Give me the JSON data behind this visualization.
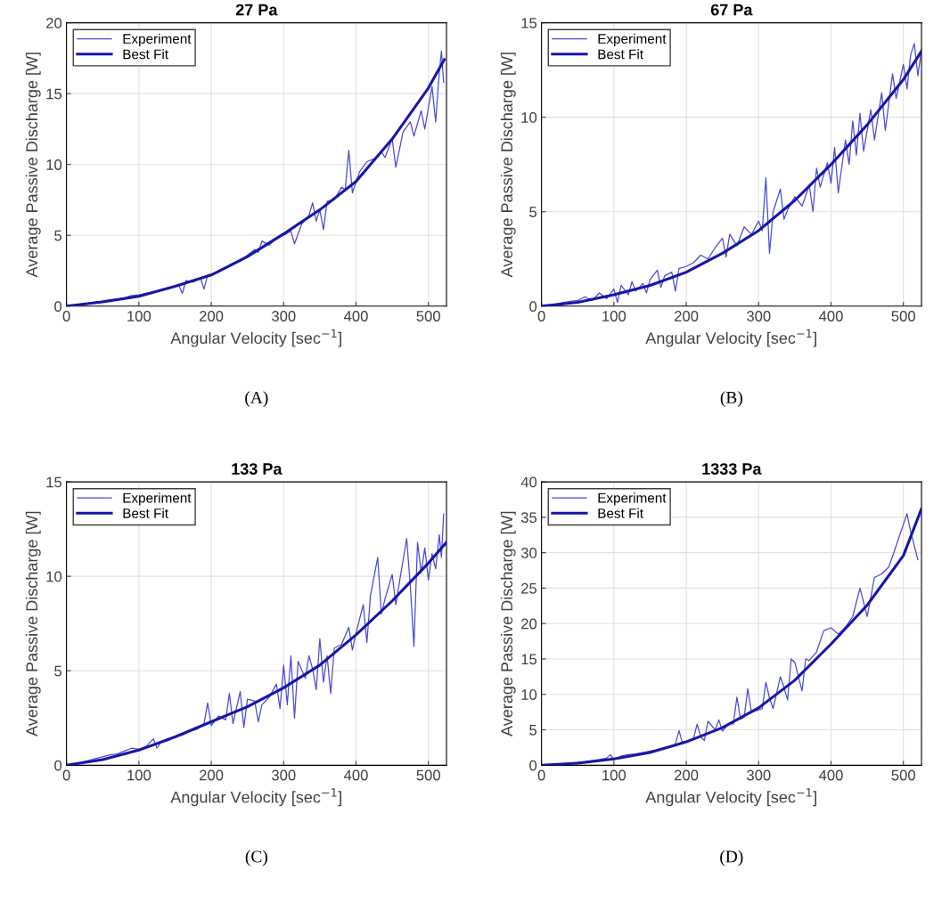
{
  "chart_data": [
    {
      "type": "line",
      "title": "27 Pa",
      "xlabel": "Angular Velocity [sec$^{−1}$]",
      "ylabel": "Average Passive Discharge [W]",
      "xlim": [
        0,
        525
      ],
      "ylim": [
        0,
        20
      ],
      "xticks": [
        0,
        100,
        200,
        300,
        400,
        500
      ],
      "yticks": [
        0,
        5,
        10,
        15,
        20
      ],
      "grid": true,
      "legend": "top left",
      "line_style": "solid",
      "annotations": [
        "(A)"
      ],
      "series": [
        {
          "name": "Experiment",
          "color": "#4a4ad6",
          "x": [
            0,
            10,
            20,
            30,
            40,
            50,
            60,
            70,
            80,
            90,
            100,
            110,
            120,
            130,
            140,
            150,
            155,
            160,
            165,
            175,
            185,
            190,
            195,
            210,
            225,
            240,
            250,
            260,
            265,
            270,
            280,
            290,
            300,
            310,
            315,
            325,
            335,
            340,
            345,
            350,
            355,
            360,
            370,
            380,
            385,
            390,
            395,
            405,
            415,
            425,
            435,
            440,
            450,
            455,
            465,
            475,
            480,
            490,
            495,
            505,
            510,
            515,
            518,
            521
          ],
          "values": [
            0,
            0.05,
            0.12,
            0.2,
            0.3,
            0.35,
            0.45,
            0.5,
            0.6,
            0.75,
            0.8,
            0.9,
            1.0,
            1.1,
            1.3,
            1.4,
            1.5,
            0.9,
            1.8,
            1.7,
            2.0,
            1.2,
            2.2,
            2.4,
            2.8,
            3.2,
            3.6,
            4.0,
            3.8,
            4.6,
            4.3,
            4.8,
            5.0,
            5.3,
            4.4,
            5.8,
            6.4,
            7.3,
            6.0,
            6.8,
            5.4,
            7.4,
            7.5,
            8.4,
            8.2,
            11.0,
            8.0,
            9.5,
            10.2,
            10.4,
            10.9,
            10.5,
            11.8,
            9.8,
            12.3,
            13.0,
            12.0,
            13.8,
            12.5,
            15.5,
            13.0,
            16.5,
            18.0,
            15.8
          ]
        },
        {
          "name": "Best Fit",
          "color": "#1616a6",
          "x": [
            0,
            50,
            100,
            150,
            200,
            250,
            300,
            350,
            400,
            450,
            500,
            522
          ],
          "values": [
            0,
            0.3,
            0.7,
            1.4,
            2.2,
            3.5,
            5.1,
            6.8,
            8.8,
            11.8,
            15.4,
            17.4
          ]
        }
      ]
    },
    {
      "type": "line",
      "title": "67 Pa",
      "xlabel": "Angular Velocity [sec$^{−1}$]",
      "ylabel": "Average Passive Discharge [W]",
      "xlim": [
        0,
        525
      ],
      "ylim": [
        0,
        15
      ],
      "xticks": [
        0,
        100,
        200,
        300,
        400,
        500
      ],
      "yticks": [
        0,
        5,
        10,
        15
      ],
      "grid": true,
      "legend": "top left",
      "line_style": "solid",
      "annotations": [
        "(B)"
      ],
      "series": [
        {
          "name": "Experiment",
          "color": "#4a4ad6",
          "x": [
            0,
            10,
            20,
            30,
            40,
            50,
            60,
            70,
            80,
            90,
            100,
            105,
            110,
            120,
            125,
            130,
            140,
            145,
            150,
            160,
            165,
            170,
            180,
            185,
            190,
            200,
            210,
            220,
            230,
            240,
            250,
            255,
            260,
            270,
            280,
            290,
            300,
            305,
            310,
            315,
            320,
            330,
            335,
            340,
            350,
            360,
            370,
            375,
            380,
            385,
            395,
            400,
            405,
            410,
            420,
            425,
            430,
            435,
            440,
            445,
            455,
            460,
            470,
            475,
            485,
            490,
            500,
            505,
            510,
            515,
            520,
            525
          ],
          "values": [
            0,
            0.05,
            0.1,
            0.2,
            0.25,
            0.3,
            0.5,
            0.3,
            0.7,
            0.4,
            0.9,
            0.2,
            1.1,
            0.6,
            1.3,
            0.8,
            1.2,
            0.7,
            1.4,
            1.9,
            1.0,
            1.6,
            1.8,
            0.8,
            2.0,
            2.1,
            2.3,
            2.7,
            2.5,
            3.1,
            3.6,
            2.6,
            3.8,
            3.2,
            4.2,
            3.8,
            4.5,
            4.0,
            6.8,
            2.8,
            5.0,
            6.2,
            4.6,
            5.1,
            5.8,
            5.3,
            6.4,
            5.0,
            7.3,
            6.3,
            7.6,
            6.5,
            8.4,
            6.0,
            8.8,
            7.5,
            9.8,
            8.0,
            10.2,
            8.2,
            10.4,
            8.8,
            11.3,
            9.3,
            12.3,
            11.0,
            12.8,
            11.5,
            13.3,
            13.9,
            12.2,
            13.6
          ]
        },
        {
          "name": "Best Fit",
          "color": "#1616a6",
          "x": [
            0,
            50,
            100,
            150,
            200,
            250,
            300,
            350,
            400,
            450,
            500,
            525
          ],
          "values": [
            0,
            0.2,
            0.6,
            1.1,
            1.8,
            2.8,
            4.0,
            5.6,
            7.5,
            9.6,
            12.0,
            13.5
          ]
        }
      ]
    },
    {
      "type": "line",
      "title": "133 Pa",
      "xlabel": "Angular Velocity [sec$^{−1}$]",
      "ylabel": "Average Passive Discharge [W]",
      "xlim": [
        0,
        525
      ],
      "ylim": [
        0,
        15
      ],
      "xticks": [
        0,
        100,
        200,
        300,
        400,
        500
      ],
      "yticks": [
        0,
        5,
        10,
        15
      ],
      "grid": true,
      "legend": "top left",
      "line_style": "solid",
      "annotations": [
        "(C)"
      ],
      "series": [
        {
          "name": "Experiment",
          "color": "#4a4ad6",
          "x": [
            0,
            10,
            20,
            30,
            40,
            50,
            60,
            70,
            80,
            90,
            100,
            110,
            120,
            125,
            130,
            140,
            150,
            160,
            170,
            180,
            190,
            195,
            200,
            210,
            220,
            225,
            230,
            240,
            245,
            250,
            260,
            265,
            270,
            280,
            290,
            295,
            300,
            305,
            310,
            315,
            320,
            330,
            335,
            340,
            345,
            350,
            355,
            360,
            365,
            370,
            380,
            390,
            395,
            400,
            410,
            415,
            420,
            430,
            435,
            440,
            450,
            455,
            460,
            470,
            475,
            480,
            485,
            490,
            495,
            500,
            505,
            510,
            515,
            518,
            521
          ],
          "values": [
            0,
            0.05,
            0.15,
            0.25,
            0.35,
            0.45,
            0.55,
            0.6,
            0.75,
            0.9,
            0.85,
            1.0,
            1.4,
            0.9,
            1.2,
            1.3,
            1.5,
            1.6,
            1.8,
            1.9,
            2.2,
            3.3,
            2.1,
            2.6,
            2.4,
            3.8,
            2.2,
            3.9,
            2.0,
            3.5,
            3.4,
            2.3,
            3.2,
            3.6,
            4.3,
            3.0,
            5.3,
            3.2,
            5.8,
            2.5,
            5.5,
            4.6,
            5.8,
            5.1,
            4.0,
            6.7,
            4.4,
            5.8,
            3.8,
            6.2,
            6.4,
            7.3,
            6.1,
            7.0,
            8.5,
            6.5,
            9.0,
            11.0,
            8.0,
            8.8,
            10.1,
            8.5,
            9.7,
            12.0,
            9.5,
            6.3,
            11.8,
            10.2,
            11.5,
            9.8,
            11.2,
            10.4,
            12.2,
            11.0,
            13.3
          ]
        },
        {
          "name": "Best Fit",
          "color": "#1616a6",
          "x": [
            0,
            50,
            100,
            150,
            200,
            250,
            300,
            350,
            400,
            450,
            500,
            525
          ],
          "values": [
            0,
            0.3,
            0.8,
            1.5,
            2.3,
            3.1,
            4.1,
            5.3,
            6.9,
            8.7,
            10.7,
            11.8
          ]
        }
      ]
    },
    {
      "type": "line",
      "title": "1333 Pa",
      "xlabel": "Angular Velocity [sec$^{−1}$]",
      "ylabel": "Average Passive Discharge [W]",
      "xlim": [
        0,
        525
      ],
      "ylim": [
        0,
        40
      ],
      "xticks": [
        0,
        100,
        200,
        300,
        400,
        500
      ],
      "yticks": [
        0,
        5,
        10,
        15,
        20,
        25,
        30,
        35,
        40
      ],
      "grid": true,
      "legend": "top left",
      "line_style": "solid",
      "annotations": [
        "(D)"
      ],
      "series": [
        {
          "name": "Experiment",
          "color": "#4a4ad6",
          "x": [
            0,
            20,
            40,
            60,
            80,
            90,
            95,
            100,
            110,
            120,
            130,
            140,
            150,
            160,
            170,
            180,
            185,
            190,
            195,
            200,
            210,
            215,
            220,
            225,
            230,
            240,
            245,
            250,
            260,
            265,
            270,
            275,
            280,
            285,
            290,
            300,
            305,
            310,
            315,
            320,
            330,
            335,
            340,
            345,
            350,
            355,
            360,
            365,
            370,
            380,
            390,
            400,
            410,
            420,
            430,
            440,
            445,
            450,
            460,
            470,
            480,
            490,
            500,
            505,
            510,
            515,
            520
          ],
          "values": [
            0,
            0.1,
            0.3,
            0.5,
            0.8,
            1.0,
            1.5,
            0.8,
            1.3,
            1.5,
            1.6,
            1.8,
            2.0,
            2.2,
            2.5,
            2.7,
            3.0,
            4.9,
            3.0,
            3.4,
            3.8,
            5.8,
            4.0,
            3.5,
            6.2,
            5.0,
            6.4,
            4.8,
            6.0,
            5.8,
            9.6,
            6.5,
            6.8,
            10.8,
            7.5,
            7.8,
            8.0,
            11.7,
            9.5,
            8.0,
            12.5,
            11.0,
            9.2,
            15.0,
            14.5,
            12.5,
            10.5,
            15.0,
            14.8,
            16.0,
            19.0,
            19.4,
            18.5,
            19.5,
            21.0,
            25.0,
            23.0,
            21.0,
            26.5,
            27.0,
            28.0,
            31.0,
            34.0,
            35.5,
            33.0,
            31.0,
            29.0
          ]
        },
        {
          "name": "Best Fit",
          "color": "#1616a6",
          "x": [
            0,
            50,
            100,
            150,
            200,
            250,
            300,
            350,
            400,
            450,
            500,
            525
          ],
          "values": [
            0,
            0.3,
            0.9,
            1.8,
            3.3,
            5.3,
            8.1,
            12.0,
            17.1,
            22.6,
            29.6,
            36.2
          ]
        }
      ]
    }
  ]
}
